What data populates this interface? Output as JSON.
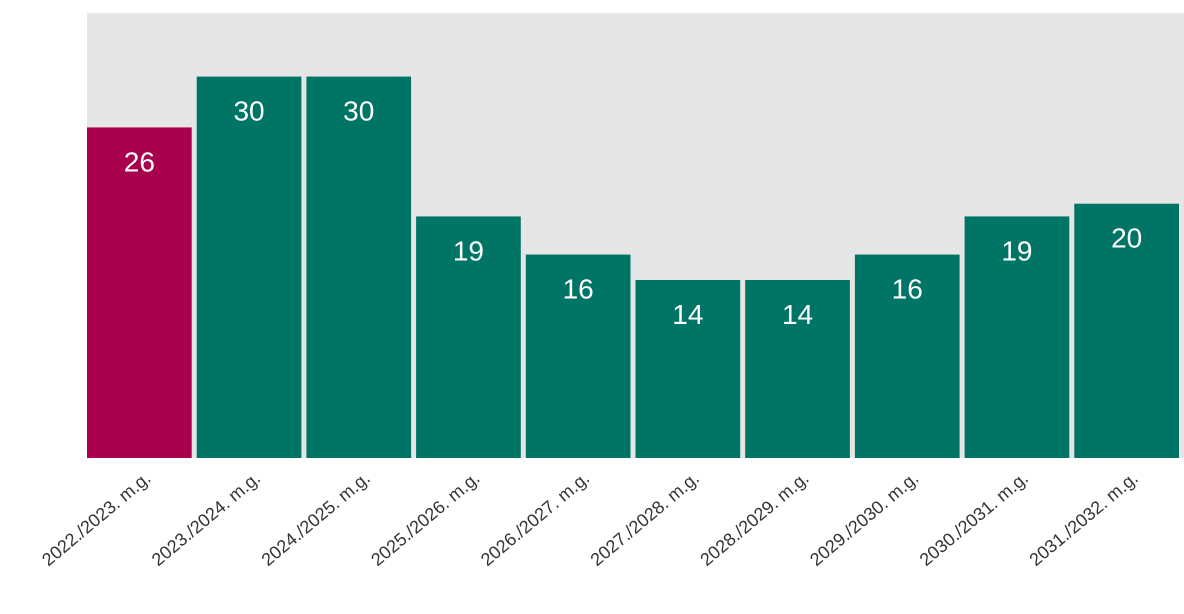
{
  "chart_data": {
    "type": "bar",
    "categories": [
      "2022./2023. m.g.",
      "2023./2024. m.g.",
      "2024./2025. m.g.",
      "2025./2026. m.g.",
      "2026./2027. m.g.",
      "2027./2028. m.g.",
      "2028./2029. m.g.",
      "2029./2030. m.g.",
      "2030./2031. m.g.",
      "2031./2032. m.g."
    ],
    "values": [
      26,
      30,
      30,
      19,
      16,
      14,
      14,
      16,
      19,
      20
    ],
    "data_labels": [
      "26",
      "30",
      "30",
      "19",
      "16",
      "14",
      "14",
      "16",
      "19",
      "20"
    ],
    "bar_colors": [
      "#a8004c",
      "#007565",
      "#007565",
      "#007565",
      "#007565",
      "#007565",
      "#007565",
      "#007565",
      "#007565",
      "#007565"
    ],
    "background_color": "#e6e6e6",
    "ylim": [
      0,
      35
    ],
    "grid": false,
    "legend": "none",
    "title": "",
    "xlabel": "",
    "ylabel": ""
  }
}
